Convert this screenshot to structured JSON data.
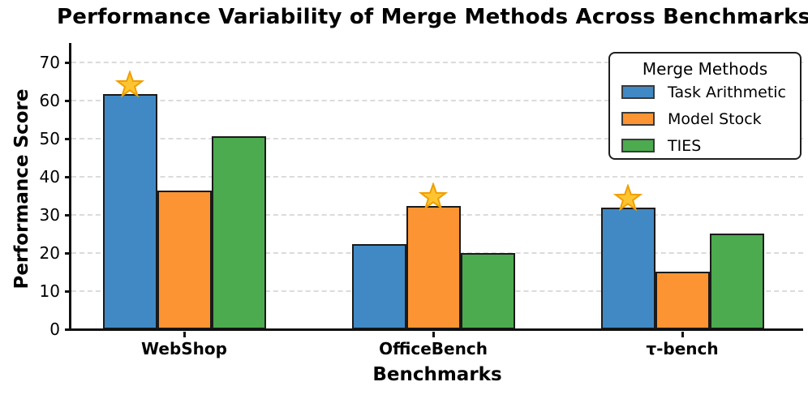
{
  "legend": {
    "title": "Merge Methods"
  },
  "chart_data": {
    "type": "bar",
    "title": "Performance Variability of Merge Methods Across Benchmarks",
    "xlabel": "Benchmarks",
    "ylabel": "Performance Score",
    "categories": [
      "WebShop",
      "OfficeBench",
      "τ-bench"
    ],
    "series": [
      {
        "name": "Task Arithmetic",
        "color": "#4189C4",
        "values": [
          61.8,
          22.4,
          32.0
        ]
      },
      {
        "name": "Model Stock",
        "color": "#FC9433",
        "values": [
          36.3,
          32.3,
          15.2
        ]
      },
      {
        "name": "TIES",
        "color": "#4CAA4F",
        "values": [
          50.6,
          20.0,
          25.0
        ]
      }
    ],
    "ylim": [
      0,
      70
    ],
    "y_ticks": [
      0,
      10,
      20,
      30,
      40,
      50,
      60,
      70
    ],
    "grid": {
      "axis": "y",
      "style": "dashed",
      "color": "#DBDBDB"
    },
    "legend_position": "upper right",
    "bar_edge_color": "#1A1A1A",
    "star_fill": "#FFC531",
    "star_edge": "#F09E00",
    "annotations": [
      {
        "marker": "star",
        "category": "WebShop",
        "series": "Task Arithmetic"
      },
      {
        "marker": "star",
        "category": "OfficeBench",
        "series": "Model Stock"
      },
      {
        "marker": "star",
        "category": "τ-bench",
        "series": "Task Arithmetic"
      }
    ]
  }
}
